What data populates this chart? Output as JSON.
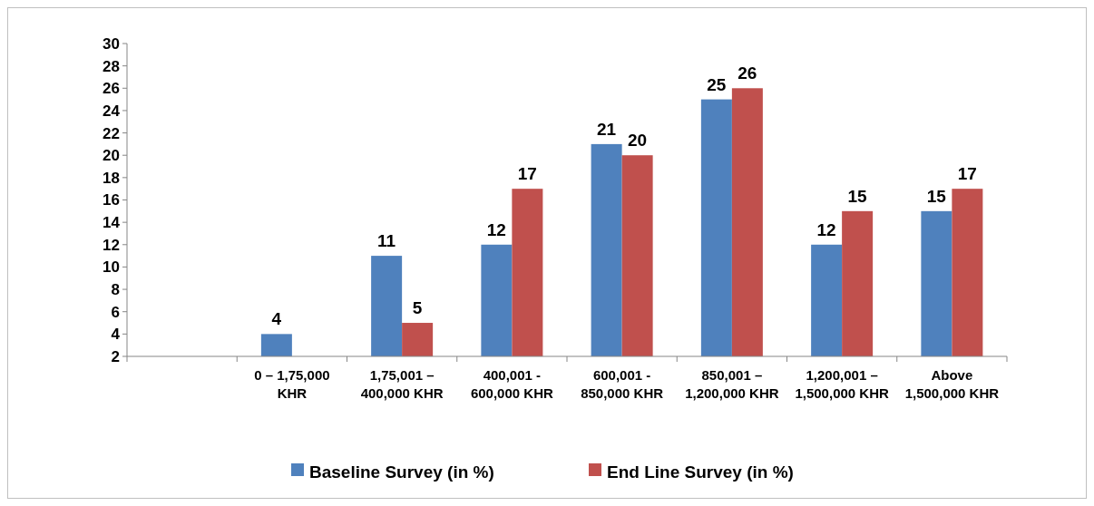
{
  "chart_data": {
    "type": "bar",
    "categories": [
      null,
      "0 – 1,75,000 KHR",
      "1,75,001 – 400,000 KHR",
      "400,001 - 600,000 KHR",
      "600,001 - 850,000 KHR",
      "850,001 – 1,200,000 KHR",
      "1,200,001 – 1,500,000 KHR",
      "Above 1,500,000 KHR"
    ],
    "series": [
      {
        "name": "Baseline Survey (in %)",
        "color": "#4f81bd",
        "values": [
          null,
          4,
          11,
          12,
          21,
          25,
          12,
          15
        ],
        "value_labels": [
          null,
          "4",
          "11",
          "12",
          "21",
          "25",
          "12",
          "15"
        ]
      },
      {
        "name": "End Line Survey (in %)",
        "color": "#c0504d",
        "values": [
          null,
          2,
          5,
          17,
          20,
          26,
          15,
          17
        ],
        "value_labels": [
          null,
          null,
          "5",
          "17",
          "20",
          "26",
          "15",
          "17"
        ]
      }
    ],
    "ylim": [
      2,
      30
    ],
    "yticks": [
      2,
      4,
      6,
      8,
      10,
      12,
      14,
      16,
      18,
      20,
      22,
      24,
      26,
      28,
      30
    ],
    "grid": false,
    "legend": "bottom"
  }
}
